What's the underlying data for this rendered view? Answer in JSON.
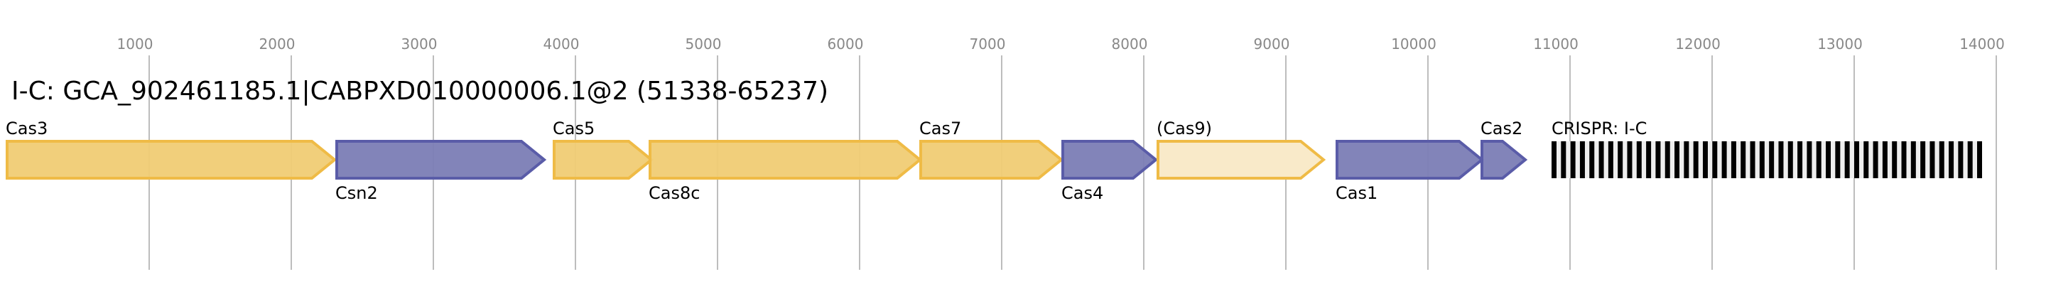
{
  "title": "I-C: GCA_902461185.1|CABPXD010000006.1@2 (51338-65237)",
  "chart_data": {
    "type": "gene-map",
    "x_range": [
      0,
      14300
    ],
    "grid": true,
    "ticks": [
      1000,
      2000,
      3000,
      4000,
      5000,
      6000,
      7000,
      8000,
      9000,
      10000,
      11000,
      12000,
      13000,
      14000
    ],
    "genes": [
      {
        "name": "Cas3",
        "start": 0,
        "end": 2305,
        "strand": "+",
        "style": "yellow",
        "label_side": "above"
      },
      {
        "name": "Csn2",
        "start": 2320,
        "end": 3780,
        "strand": "+",
        "style": "blue",
        "label_side": "below"
      },
      {
        "name": "Cas5",
        "start": 3850,
        "end": 4535,
        "strand": "+",
        "style": "yellow",
        "label_side": "above"
      },
      {
        "name": "Cas8c",
        "start": 4525,
        "end": 6425,
        "strand": "+",
        "style": "yellow",
        "label_side": "below"
      },
      {
        "name": "Cas7",
        "start": 6430,
        "end": 7420,
        "strand": "+",
        "style": "yellow",
        "label_side": "above"
      },
      {
        "name": "Cas4",
        "start": 7430,
        "end": 8085,
        "strand": "+",
        "style": "blue",
        "label_side": "below"
      },
      {
        "name": "(Cas9)",
        "start": 8100,
        "end": 9265,
        "strand": "+",
        "style": "pale",
        "label_side": "above"
      },
      {
        "name": "Cas1",
        "start": 9360,
        "end": 10380,
        "strand": "+",
        "style": "blue",
        "label_side": "below"
      },
      {
        "name": "Cas2",
        "start": 10380,
        "end": 10685,
        "strand": "+",
        "style": "blue",
        "label_side": "above"
      }
    ],
    "crispr": {
      "name": "CRISPR: I-C",
      "start": 10870,
      "end": 13900,
      "repeat_count": 46
    }
  },
  "colors": {
    "yellow_fill": "#f0cc74",
    "yellow_stroke": "#efbb46",
    "blue_fill": "#7b7db5",
    "blue_stroke": "#5a5ca8",
    "pale_fill": "#f9eac9",
    "pale_stroke": "#efbb46",
    "crispr_bg": "#eeeeee",
    "crispr_repeat": "#000000"
  }
}
